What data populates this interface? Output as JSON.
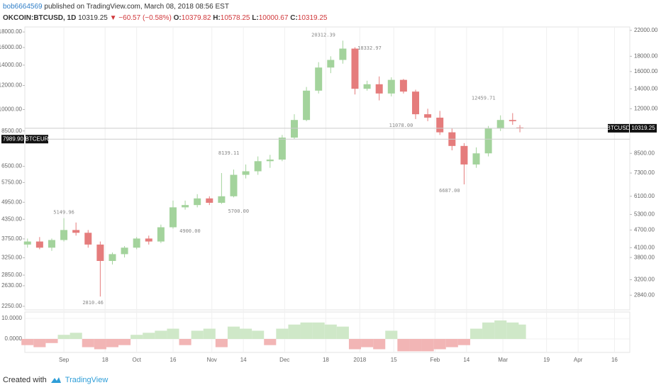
{
  "header": {
    "author": "bob6664569",
    "published": "published on TradingView.com, March 08, 2018 08:56 EST",
    "symbol": "OKCOIN:BTCUSD, 1D",
    "last": "10319.25",
    "change": "▼ −60.57 (−0.58%)",
    "ohlc": [
      {
        "key": "O:",
        "value": "10379.82"
      },
      {
        "key": "H:",
        "value": "10578.25"
      },
      {
        "key": "L:",
        "value": "10000.67"
      },
      {
        "key": "C:",
        "value": "10319.25"
      }
    ]
  },
  "chart_data": [
    {
      "type": "candlestick",
      "up_color": "#a3d39c",
      "down_color": "#e57c7c",
      "log": true,
      "x": [
        -15,
        -10,
        -5,
        0,
        5,
        10,
        15,
        20,
        25,
        30,
        35,
        40,
        45,
        50,
        55,
        60,
        65,
        70,
        75,
        80,
        85,
        90,
        95,
        100,
        105,
        110,
        115,
        120,
        125,
        130,
        135,
        140,
        145,
        150,
        155,
        160,
        165,
        170,
        175,
        180,
        185,
        188
      ],
      "open": [
        4200,
        4300,
        4100,
        4350,
        4700,
        4600,
        4200,
        3700,
        3900,
        4100,
        4400,
        4300,
        4800,
        5600,
        5700,
        6000,
        5800,
        6100,
        7200,
        7400,
        8000,
        8100,
        9600,
        11000,
        13800,
        16500,
        17500,
        19100,
        14000,
        14500,
        13500,
        15000,
        13700,
        11500,
        11200,
        10000,
        9000,
        7800,
        8500,
        10300,
        11000,
        10379.82
      ],
      "high": [
        4400,
        4450,
        4400,
        5149.96,
        4980,
        4700,
        4300,
        3950,
        4150,
        4450,
        4500,
        4900,
        5900,
        5900,
        6200,
        6100,
        7300,
        7500,
        7800,
        8300,
        8400,
        9800,
        11500,
        14200,
        17200,
        18000,
        20312.39,
        19300,
        14900,
        15400,
        15300,
        15100,
        13900,
        12000,
        11800,
        10300,
        9200,
        8900,
        10500,
        11400,
        11600,
        10578.25
      ],
      "low": [
        4100,
        4050,
        4000,
        4300,
        4500,
        4100,
        2810.46,
        3600,
        3800,
        4050,
        4200,
        4250,
        4750,
        5500,
        5600,
        5700,
        5750,
        6050,
        7000,
        7200,
        7600,
        8000,
        9500,
        10900,
        13500,
        15800,
        17000,
        13400,
        13800,
        12800,
        13200,
        13500,
        11078,
        10900,
        9800,
        8700,
        6687,
        7600,
        8300,
        10100,
        10600,
        10000.67
      ],
      "close": [
        4300,
        4100,
        4350,
        4700,
        4600,
        4200,
        3700,
        3900,
        4100,
        4400,
        4300,
        4800,
        5600,
        5700,
        6000,
        5800,
        6100,
        7200,
        7400,
        8000,
        8100,
        9600,
        11000,
        13800,
        16500,
        17500,
        19100,
        14000,
        14500,
        13500,
        15000,
        13700,
        11500,
        11200,
        10000,
        9000,
        7800,
        8500,
        10300,
        11000,
        10900,
        10319.25
      ],
      "xlim": [
        -16.1,
        233.3
      ],
      "xticks": [
        {
          "value": 0,
          "label": "Sep"
        },
        {
          "value": 17,
          "label": "18"
        },
        {
          "value": 30,
          "label": "Oct"
        },
        {
          "value": 45,
          "label": "16"
        },
        {
          "value": 61,
          "label": "Nov"
        },
        {
          "value": 74,
          "label": "14"
        },
        {
          "value": 91,
          "label": "Dec"
        },
        {
          "value": 108,
          "label": "18"
        },
        {
          "value": 122,
          "label": "2018"
        },
        {
          "value": 136,
          "label": "15"
        },
        {
          "value": 153,
          "label": "Feb"
        },
        {
          "value": 166,
          "label": "14"
        },
        {
          "value": 181,
          "label": "Mar"
        },
        {
          "value": 199,
          "label": "19"
        },
        {
          "value": 212,
          "label": "Apr"
        },
        {
          "value": 227,
          "label": "16"
        }
      ],
      "ylim": [
        2535,
        22580
      ],
      "yticks": [
        {
          "value": 22000,
          "label": "22000.00"
        },
        {
          "value": 18000,
          "label": "18000.00"
        },
        {
          "value": 16000,
          "label": "16000.00"
        },
        {
          "value": 14000,
          "label": "14000.00"
        },
        {
          "value": 12000,
          "label": "12000.00"
        },
        {
          "value": 8500,
          "label": "8500.00"
        },
        {
          "value": 7300,
          "label": "7300.00"
        },
        {
          "value": 6100,
          "label": "6100.00"
        },
        {
          "value": 5300,
          "label": "5300.00"
        },
        {
          "value": 4700,
          "label": "4700.00"
        },
        {
          "value": 4100,
          "label": "4100.00"
        },
        {
          "value": 3800,
          "label": "3800.00"
        },
        {
          "value": 3200,
          "label": "3200.00"
        },
        {
          "value": 2840,
          "label": "2840.00"
        }
      ],
      "y2lim": [
        2190,
        18700
      ],
      "y2ticks": [
        {
          "value": 18000,
          "label": "18000.00"
        },
        {
          "value": 16000,
          "label": "16000.00"
        },
        {
          "value": 14000,
          "label": "14000.00"
        },
        {
          "value": 12000,
          "label": "12000.00"
        },
        {
          "value": 10000,
          "label": "10000.00"
        },
        {
          "value": 8500,
          "label": "8500.00"
        },
        {
          "value": 6500,
          "label": "6500.00"
        },
        {
          "value": 5750,
          "label": "5750.00"
        },
        {
          "value": 4950,
          "label": "4950.00"
        },
        {
          "value": 4350,
          "label": "4350.00"
        },
        {
          "value": 3750,
          "label": "3750.00"
        },
        {
          "value": 3250,
          "label": "3250.00"
        },
        {
          "value": 2850,
          "label": "2850.00"
        },
        {
          "value": 2630,
          "label": "2630.00"
        },
        {
          "value": 2250,
          "label": "2250.00"
        }
      ],
      "annotations": [
        {
          "x": 107,
          "value": 20312.39,
          "label": "20312.39"
        },
        {
          "x": 126,
          "value": 18332.97,
          "label": "18332.97"
        },
        {
          "x": 173,
          "value": 12459.71,
          "label": "12459.71"
        },
        {
          "x": 139,
          "value": 11078,
          "label": "11078.00"
        },
        {
          "x": 68,
          "value": 8139.11,
          "label": "8139.11"
        },
        {
          "x": 159,
          "value": 6687,
          "label": "6687.00"
        },
        {
          "x": 0,
          "value": 5149.96,
          "label": "5149.96"
        },
        {
          "x": 72,
          "value": 5700,
          "label": "5700.00"
        },
        {
          "x": 52,
          "value": 4900,
          "label": "4900.00"
        },
        {
          "x": 12,
          "value": 2810.46,
          "label": "2810.46"
        }
      ],
      "price_tags": [
        {
          "name": "BTCUSD",
          "value": 10319.25,
          "label": "10319.25",
          "axis": "y"
        },
        {
          "name": "BTCEUR",
          "value": 7989.9,
          "label": "7989.90",
          "axis": "y2"
        }
      ]
    },
    {
      "type": "bar",
      "up_color": "#cfe8c8",
      "down_color": "#f2b5b5",
      "x": [
        -15,
        -10,
        -5,
        0,
        5,
        10,
        15,
        20,
        25,
        30,
        35,
        40,
        45,
        50,
        55,
        60,
        65,
        70,
        75,
        80,
        85,
        90,
        95,
        100,
        105,
        110,
        115,
        120,
        125,
        130,
        135,
        140,
        145,
        150,
        155,
        160,
        165,
        170,
        175,
        180,
        185,
        188
      ],
      "values": [
        -3,
        -4,
        -2,
        2,
        3,
        -4,
        -5,
        -4,
        -3,
        2,
        3,
        4,
        5,
        -3,
        4,
        5,
        -4,
        6,
        5,
        4,
        -3,
        5,
        7,
        8,
        8,
        7,
        6,
        -5,
        -4,
        -5,
        4,
        -6,
        -6,
        -6,
        -5,
        -4,
        -3,
        5,
        8,
        9,
        8,
        7
      ],
      "ylim": [
        -6.55,
        13.1
      ],
      "yticks": [
        {
          "value": 10,
          "label": "10.0000"
        },
        {
          "value": 0,
          "label": "0.0000"
        }
      ]
    }
  ],
  "footer": {
    "created": "Created with",
    "brand": "TradingView"
  }
}
